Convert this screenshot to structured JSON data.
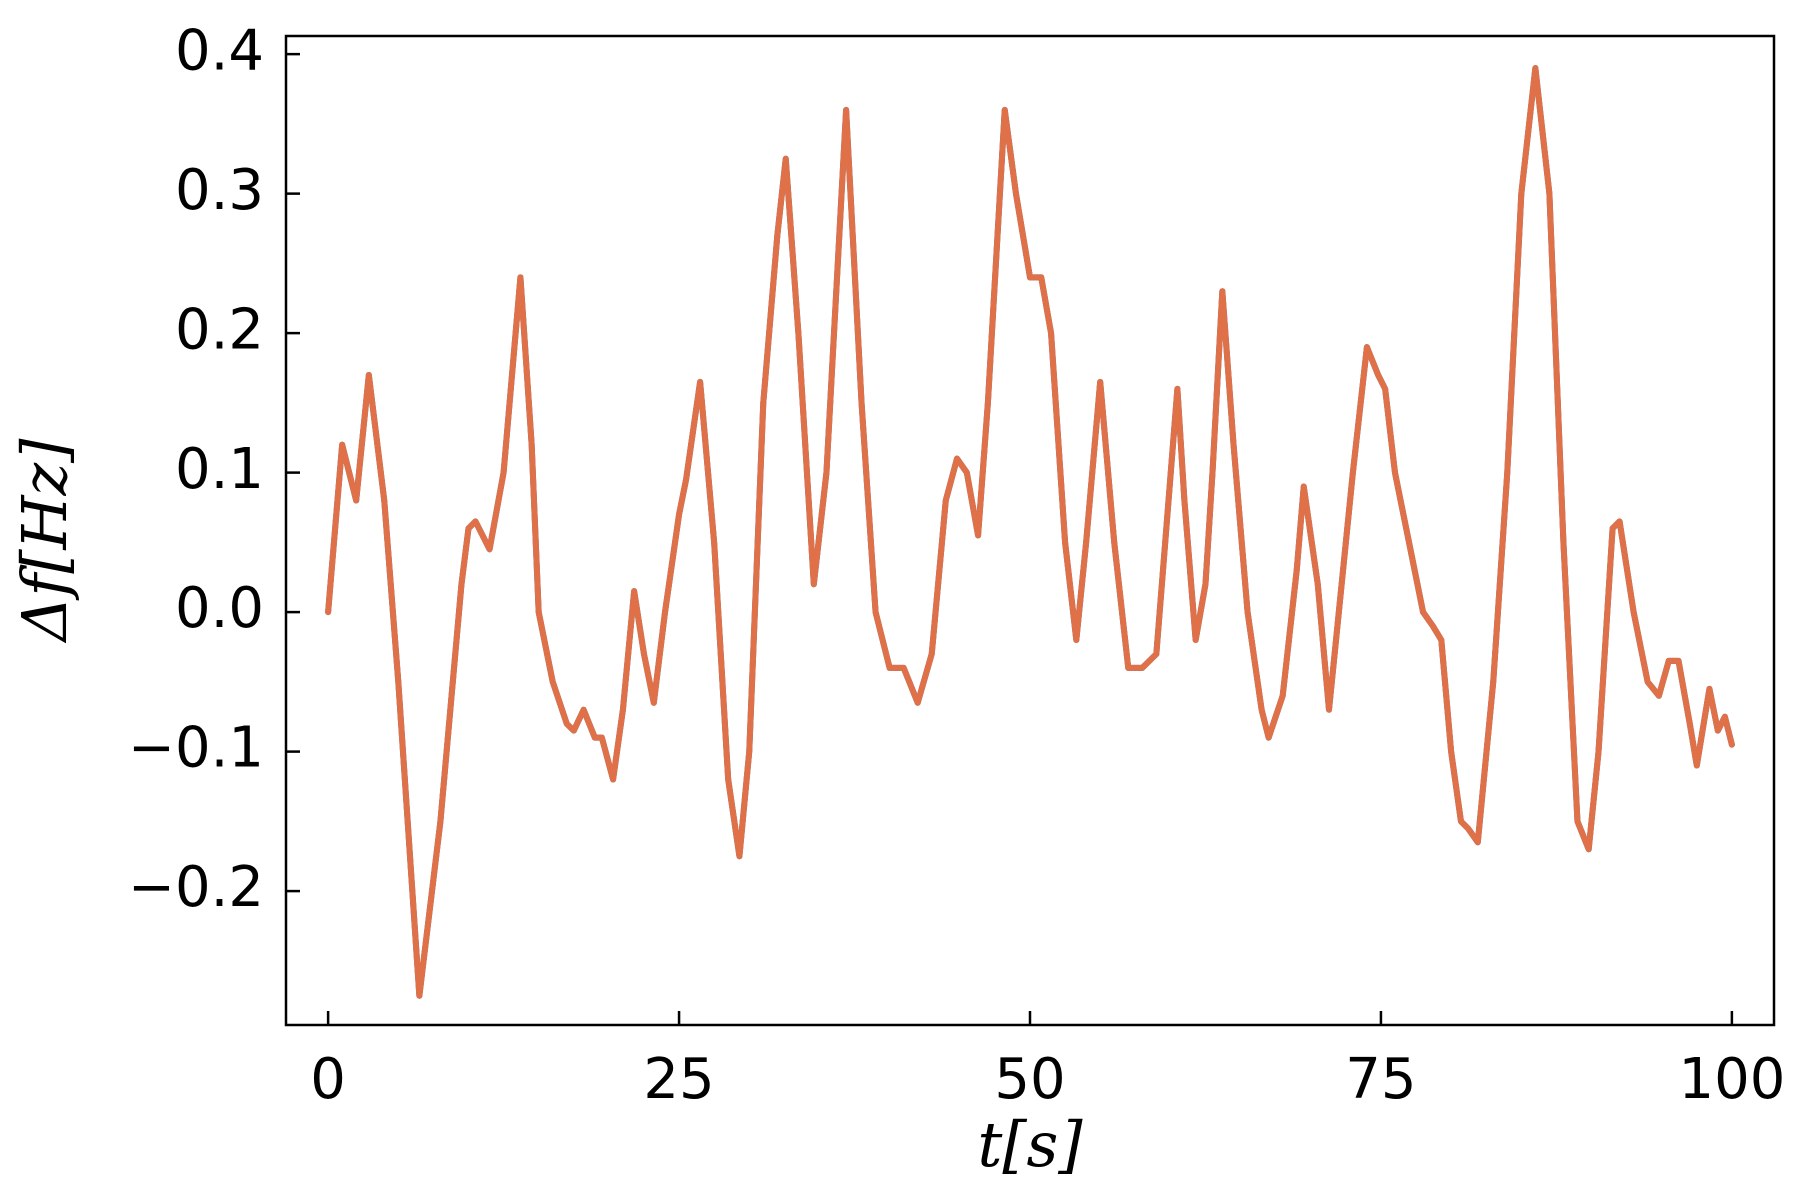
{
  "chart_data": {
    "type": "line",
    "xlabel": "t[s]",
    "ylabel": "Δf[Hz]",
    "x": [
      0,
      1,
      2,
      2.9,
      4,
      5,
      6.5,
      8,
      9.5,
      10,
      10.5,
      11.5,
      12.5,
      13.7,
      14.5,
      15,
      16,
      17,
      17.5,
      18.2,
      19,
      19.5,
      20.3,
      21,
      21.8,
      22.5,
      23.2,
      24,
      25,
      25.5,
      26.5,
      27.5,
      28.5,
      29.3,
      30,
      31,
      32,
      32.6,
      33.5,
      34.6,
      35.5,
      36.9,
      38,
      39,
      40,
      41,
      42,
      43,
      44,
      44.8,
      45.5,
      46.3,
      47,
      48.2,
      49,
      50,
      50.8,
      51.5,
      52.5,
      53.3,
      54,
      55,
      56,
      57,
      58,
      59,
      60.5,
      61,
      61.8,
      62.5,
      63,
      63.7,
      64.5,
      65.5,
      66.5,
      67,
      68,
      69,
      69.5,
      70.5,
      71.3,
      72,
      73,
      74,
      74.8,
      75.3,
      76,
      77,
      78,
      78.7,
      79.3,
      80,
      80.7,
      81.2,
      81.9,
      83,
      84,
      85,
      86,
      87,
      88,
      89,
      89.8,
      90.5,
      91.5,
      92,
      93,
      94,
      94.8,
      95.5,
      96.2,
      97,
      97.5,
      98.4,
      99,
      99.5,
      100
    ],
    "series": [
      {
        "color": "#1f77b4",
        "values": [
          0,
          0.12,
          0.08,
          0.17,
          0.08,
          -0.05,
          -0.275,
          -0.15,
          0.02,
          0.06,
          0.065,
          0.045,
          0.1,
          0.24,
          0.12,
          0,
          -0.05,
          -0.08,
          -0.085,
          -0.07,
          -0.09,
          -0.09,
          -0.12,
          -0.07,
          0.015,
          -0.03,
          -0.065,
          0,
          0.07,
          0.095,
          0.165,
          0.05,
          -0.12,
          -0.175,
          -0.1,
          0.15,
          0.27,
          0.325,
          0.2,
          0.02,
          0.1,
          0.36,
          0.15,
          0,
          -0.04,
          -0.04,
          -0.065,
          -0.03,
          0.08,
          0.11,
          0.1,
          0.055,
          0.15,
          0.36,
          0.3,
          0.24,
          0.24,
          0.2,
          0.05,
          -0.02,
          0.05,
          0.165,
          0.05,
          -0.04,
          -0.04,
          -0.03,
          0.16,
          0.08,
          -0.02,
          0.02,
          0.1,
          0.23,
          0.12,
          0,
          -0.07,
          -0.09,
          -0.06,
          0.03,
          0.09,
          0.02,
          -0.07,
          0,
          0.1,
          0.19,
          0.17,
          0.16,
          0.1,
          0.05,
          0,
          -0.01,
          -0.02,
          -0.1,
          -0.15,
          -0.155,
          -0.165,
          -0.05,
          0.1,
          0.3,
          0.39,
          0.3,
          0.05,
          -0.15,
          -0.17,
          -0.1,
          0.06,
          0.065,
          0,
          -0.05,
          -0.06,
          -0.035,
          -0.035,
          -0.08,
          -0.11,
          -0.055,
          -0.085,
          -0.075,
          -0.095
        ]
      },
      {
        "color": "#e07048",
        "values": [
          0,
          0.12,
          0.08,
          0.17,
          0.08,
          -0.05,
          -0.275,
          -0.15,
          0.02,
          0.06,
          0.065,
          0.045,
          0.1,
          0.24,
          0.12,
          0,
          -0.05,
          -0.08,
          -0.085,
          -0.07,
          -0.09,
          -0.09,
          -0.12,
          -0.07,
          0.015,
          -0.03,
          -0.065,
          0,
          0.07,
          0.095,
          0.165,
          0.05,
          -0.12,
          -0.175,
          -0.1,
          0.15,
          0.27,
          0.325,
          0.2,
          0.02,
          0.1,
          0.36,
          0.15,
          0,
          -0.04,
          -0.04,
          -0.065,
          -0.03,
          0.08,
          0.11,
          0.1,
          0.055,
          0.15,
          0.36,
          0.3,
          0.24,
          0.24,
          0.2,
          0.05,
          -0.02,
          0.05,
          0.165,
          0.05,
          -0.04,
          -0.04,
          -0.03,
          0.16,
          0.08,
          -0.02,
          0.02,
          0.1,
          0.23,
          0.12,
          0,
          -0.07,
          -0.09,
          -0.06,
          0.03,
          0.09,
          0.02,
          -0.07,
          0,
          0.1,
          0.19,
          0.17,
          0.16,
          0.1,
          0.05,
          0,
          -0.01,
          -0.02,
          -0.1,
          -0.15,
          -0.155,
          -0.165,
          -0.05,
          0.1,
          0.3,
          0.39,
          0.3,
          0.05,
          -0.15,
          -0.17,
          -0.1,
          0.06,
          0.065,
          0,
          -0.05,
          -0.06,
          -0.035,
          -0.035,
          -0.08,
          -0.11,
          -0.055,
          -0.085,
          -0.075,
          -0.095
        ]
      }
    ],
    "xlim": [
      -3,
      103
    ],
    "xticks": [
      0,
      25,
      50,
      75,
      100
    ],
    "ylim": [
      -0.296,
      0.413
    ],
    "yticks": [
      {
        "value": -0.2,
        "label": "−0.2"
      },
      {
        "value": -0.1,
        "label": "−0.1"
      },
      {
        "value": 0,
        "label": "0.0"
      },
      0.1,
      0.2,
      0.3,
      0.4
    ],
    "grid": false
  }
}
